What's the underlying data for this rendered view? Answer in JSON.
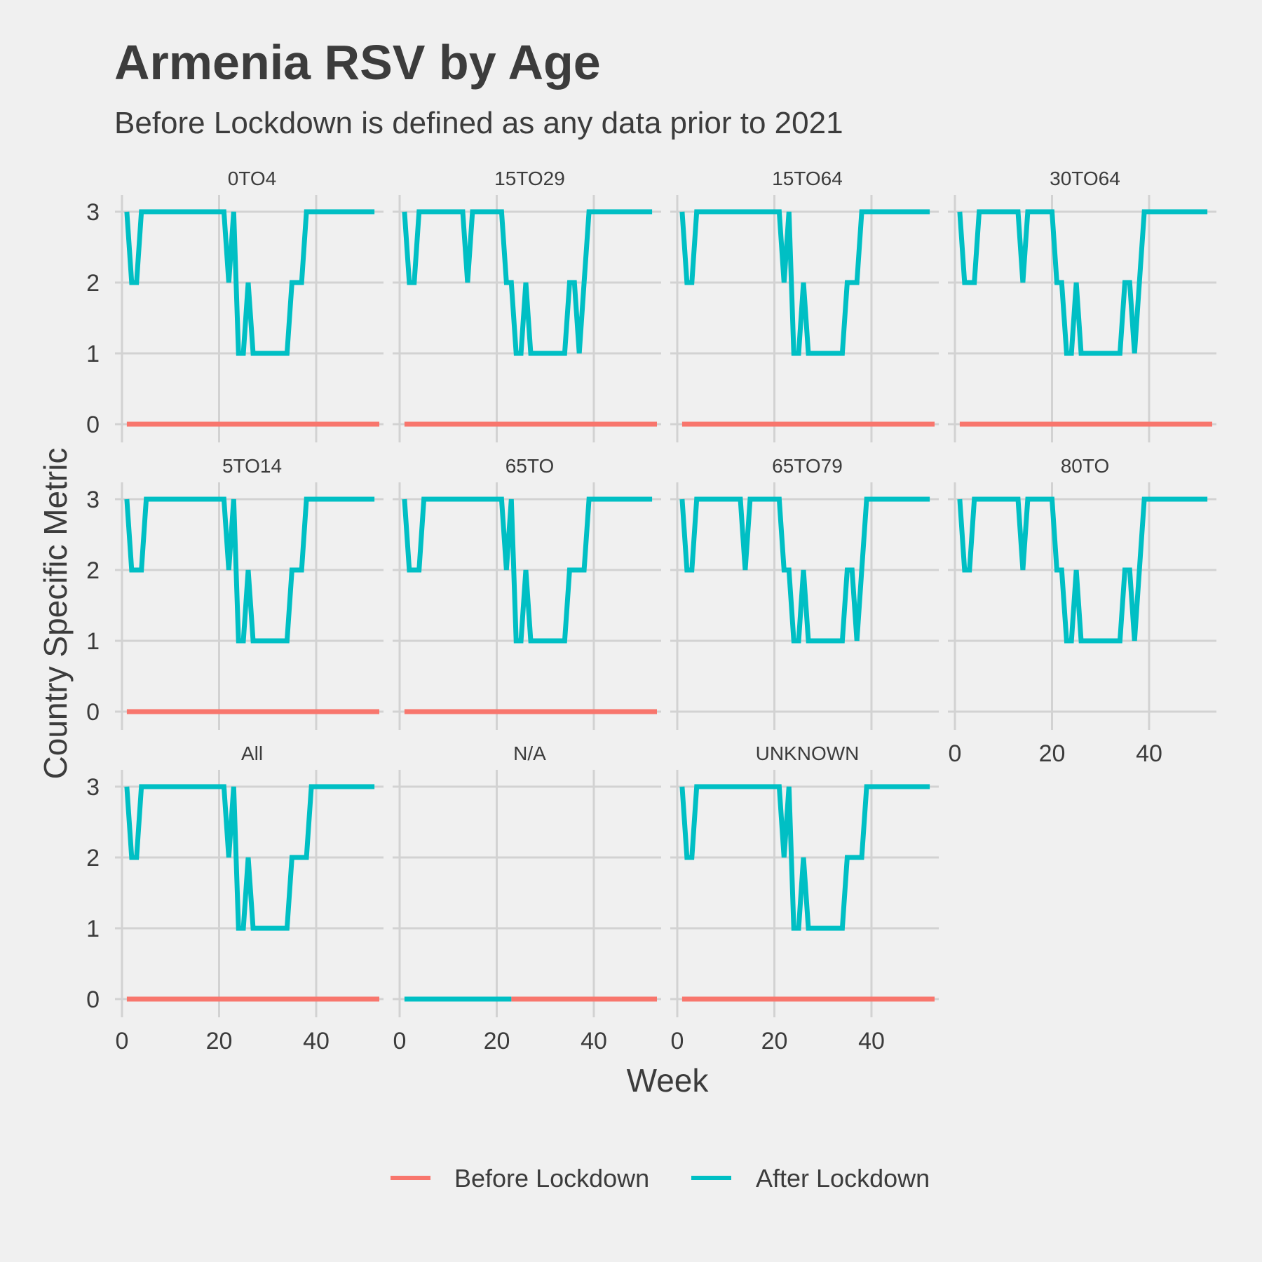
{
  "title": "Armenia RSV by Age",
  "subtitle": "Before Lockdown is defined as any data prior to 2021",
  "colors": {
    "background": "#f0f0f0",
    "grid": "#d2d2d2",
    "text": "#3c3c3c",
    "before": "#f8766d",
    "after": "#00bfc4"
  },
  "chart_data": {
    "type": "line",
    "title": "Armenia RSV by Age",
    "subtitle": "Before Lockdown is defined as any data prior to 2021",
    "xlabel": "Week",
    "ylabel": "Country Specific Metric",
    "xlim": [
      0,
      53
    ],
    "ylim": [
      0,
      3
    ],
    "x_ticks": [
      "0",
      "20",
      "40"
    ],
    "y_ticks": [
      "0",
      "1",
      "2",
      "3"
    ],
    "grid": true,
    "legend_position": "bottom",
    "legend": [
      {
        "name": "Before Lockdown",
        "color": "#f8766d"
      },
      {
        "name": "After Lockdown",
        "color": "#00bfc4"
      }
    ],
    "facets": [
      {
        "label": "0TO4",
        "series": [
          {
            "name": "Before Lockdown",
            "points": [
              [
                1,
                0
              ],
              [
                53,
                0
              ]
            ]
          },
          {
            "name": "After Lockdown",
            "points": [
              [
                1,
                3
              ],
              [
                2,
                2
              ],
              [
                3,
                2
              ],
              [
                4,
                3
              ],
              [
                21,
                3
              ],
              [
                22,
                2
              ],
              [
                23,
                3
              ],
              [
                24,
                1
              ],
              [
                25,
                1
              ],
              [
                26,
                2
              ],
              [
                27,
                1
              ],
              [
                34,
                1
              ],
              [
                35,
                2
              ],
              [
                37,
                2
              ],
              [
                38,
                3
              ],
              [
                52,
                3
              ]
            ]
          }
        ]
      },
      {
        "label": "15TO29",
        "series": [
          {
            "name": "Before Lockdown",
            "points": [
              [
                1,
                0
              ],
              [
                53,
                0
              ]
            ]
          },
          {
            "name": "After Lockdown",
            "points": [
              [
                1,
                3
              ],
              [
                2,
                2
              ],
              [
                3,
                2
              ],
              [
                4,
                3
              ],
              [
                13,
                3
              ],
              [
                14,
                2
              ],
              [
                15,
                3
              ],
              [
                21,
                3
              ],
              [
                22,
                2
              ],
              [
                23,
                2
              ],
              [
                24,
                1
              ],
              [
                25,
                1
              ],
              [
                26,
                2
              ],
              [
                27,
                1
              ],
              [
                34,
                1
              ],
              [
                35,
                2
              ],
              [
                36,
                2
              ],
              [
                37,
                1
              ],
              [
                38,
                2
              ],
              [
                39,
                3
              ],
              [
                52,
                3
              ]
            ]
          }
        ]
      },
      {
        "label": "15TO64",
        "series": [
          {
            "name": "Before Lockdown",
            "points": [
              [
                1,
                0
              ],
              [
                53,
                0
              ]
            ]
          },
          {
            "name": "After Lockdown",
            "points": [
              [
                1,
                3
              ],
              [
                2,
                2
              ],
              [
                3,
                2
              ],
              [
                4,
                3
              ],
              [
                21,
                3
              ],
              [
                22,
                2
              ],
              [
                23,
                3
              ],
              [
                24,
                1
              ],
              [
                25,
                1
              ],
              [
                26,
                2
              ],
              [
                27,
                1
              ],
              [
                34,
                1
              ],
              [
                35,
                2
              ],
              [
                37,
                2
              ],
              [
                38,
                3
              ],
              [
                52,
                3
              ]
            ]
          }
        ]
      },
      {
        "label": "30TO64",
        "series": [
          {
            "name": "Before Lockdown",
            "points": [
              [
                1,
                0
              ],
              [
                53,
                0
              ]
            ]
          },
          {
            "name": "After Lockdown",
            "points": [
              [
                1,
                3
              ],
              [
                2,
                2
              ],
              [
                4,
                2
              ],
              [
                5,
                3
              ],
              [
                13,
                3
              ],
              [
                14,
                2
              ],
              [
                15,
                3
              ],
              [
                20,
                3
              ],
              [
                21,
                2
              ],
              [
                22,
                2
              ],
              [
                23,
                1
              ],
              [
                24,
                1
              ],
              [
                25,
                2
              ],
              [
                26,
                1
              ],
              [
                34,
                1
              ],
              [
                35,
                2
              ],
              [
                36,
                2
              ],
              [
                37,
                1
              ],
              [
                38,
                2
              ],
              [
                39,
                3
              ],
              [
                52,
                3
              ]
            ]
          }
        ]
      },
      {
        "label": "5TO14",
        "series": [
          {
            "name": "Before Lockdown",
            "points": [
              [
                1,
                0
              ],
              [
                53,
                0
              ]
            ]
          },
          {
            "name": "After Lockdown",
            "points": [
              [
                1,
                3
              ],
              [
                2,
                2
              ],
              [
                4,
                2
              ],
              [
                5,
                3
              ],
              [
                21,
                3
              ],
              [
                22,
                2
              ],
              [
                23,
                3
              ],
              [
                24,
                1
              ],
              [
                25,
                1
              ],
              [
                26,
                2
              ],
              [
                27,
                1
              ],
              [
                34,
                1
              ],
              [
                35,
                2
              ],
              [
                37,
                2
              ],
              [
                38,
                3
              ],
              [
                52,
                3
              ]
            ]
          }
        ]
      },
      {
        "label": "65TO",
        "series": [
          {
            "name": "Before Lockdown",
            "points": [
              [
                1,
                0
              ],
              [
                53,
                0
              ]
            ]
          },
          {
            "name": "After Lockdown",
            "points": [
              [
                1,
                3
              ],
              [
                2,
                2
              ],
              [
                4,
                2
              ],
              [
                5,
                3
              ],
              [
                21,
                3
              ],
              [
                22,
                2
              ],
              [
                23,
                3
              ],
              [
                24,
                1
              ],
              [
                25,
                1
              ],
              [
                26,
                2
              ],
              [
                27,
                1
              ],
              [
                34,
                1
              ],
              [
                35,
                2
              ],
              [
                38,
                2
              ],
              [
                39,
                3
              ],
              [
                52,
                3
              ]
            ]
          }
        ]
      },
      {
        "label": "65TO79",
        "series": [
          {
            "name": "Before Lockdown",
            "points": []
          },
          {
            "name": "After Lockdown",
            "points": [
              [
                1,
                3
              ],
              [
                2,
                2
              ],
              [
                3,
                2
              ],
              [
                4,
                3
              ],
              [
                13,
                3
              ],
              [
                14,
                2
              ],
              [
                15,
                3
              ],
              [
                21,
                3
              ],
              [
                22,
                2
              ],
              [
                23,
                2
              ],
              [
                24,
                1
              ],
              [
                25,
                1
              ],
              [
                26,
                2
              ],
              [
                27,
                1
              ],
              [
                34,
                1
              ],
              [
                35,
                2
              ],
              [
                36,
                2
              ],
              [
                37,
                1
              ],
              [
                38,
                2
              ],
              [
                39,
                3
              ],
              [
                52,
                3
              ]
            ]
          }
        ]
      },
      {
        "label": "80TO",
        "series": [
          {
            "name": "Before Lockdown",
            "points": []
          },
          {
            "name": "After Lockdown",
            "points": [
              [
                1,
                3
              ],
              [
                2,
                2
              ],
              [
                3,
                2
              ],
              [
                4,
                3
              ],
              [
                13,
                3
              ],
              [
                14,
                2
              ],
              [
                15,
                3
              ],
              [
                20,
                3
              ],
              [
                21,
                2
              ],
              [
                22,
                2
              ],
              [
                23,
                1
              ],
              [
                24,
                1
              ],
              [
                25,
                2
              ],
              [
                26,
                1
              ],
              [
                34,
                1
              ],
              [
                35,
                2
              ],
              [
                36,
                2
              ],
              [
                37,
                1
              ],
              [
                38,
                2
              ],
              [
                39,
                3
              ],
              [
                52,
                3
              ]
            ]
          }
        ]
      },
      {
        "label": "All",
        "series": [
          {
            "name": "Before Lockdown",
            "points": [
              [
                1,
                0
              ],
              [
                53,
                0
              ]
            ]
          },
          {
            "name": "After Lockdown",
            "points": [
              [
                1,
                3
              ],
              [
                2,
                2
              ],
              [
                3,
                2
              ],
              [
                4,
                3
              ],
              [
                21,
                3
              ],
              [
                22,
                2
              ],
              [
                23,
                3
              ],
              [
                24,
                1
              ],
              [
                25,
                1
              ],
              [
                26,
                2
              ],
              [
                27,
                1
              ],
              [
                34,
                1
              ],
              [
                35,
                2
              ],
              [
                38,
                2
              ],
              [
                39,
                3
              ],
              [
                52,
                3
              ]
            ]
          }
        ]
      },
      {
        "label": "N/A",
        "series": [
          {
            "name": "Before Lockdown",
            "points": [
              [
                23,
                0
              ],
              [
                53,
                0
              ]
            ]
          },
          {
            "name": "After Lockdown",
            "points": [
              [
                1,
                0
              ],
              [
                23,
                0
              ]
            ]
          }
        ]
      },
      {
        "label": "UNKNOWN",
        "series": [
          {
            "name": "Before Lockdown",
            "points": [
              [
                1,
                0
              ],
              [
                53,
                0
              ]
            ]
          },
          {
            "name": "After Lockdown",
            "points": [
              [
                1,
                3
              ],
              [
                2,
                2
              ],
              [
                3,
                2
              ],
              [
                4,
                3
              ],
              [
                21,
                3
              ],
              [
                22,
                2
              ],
              [
                23,
                3
              ],
              [
                24,
                1
              ],
              [
                25,
                1
              ],
              [
                26,
                2
              ],
              [
                27,
                1
              ],
              [
                34,
                1
              ],
              [
                35,
                2
              ],
              [
                38,
                2
              ],
              [
                39,
                3
              ],
              [
                52,
                3
              ]
            ]
          }
        ]
      }
    ]
  }
}
